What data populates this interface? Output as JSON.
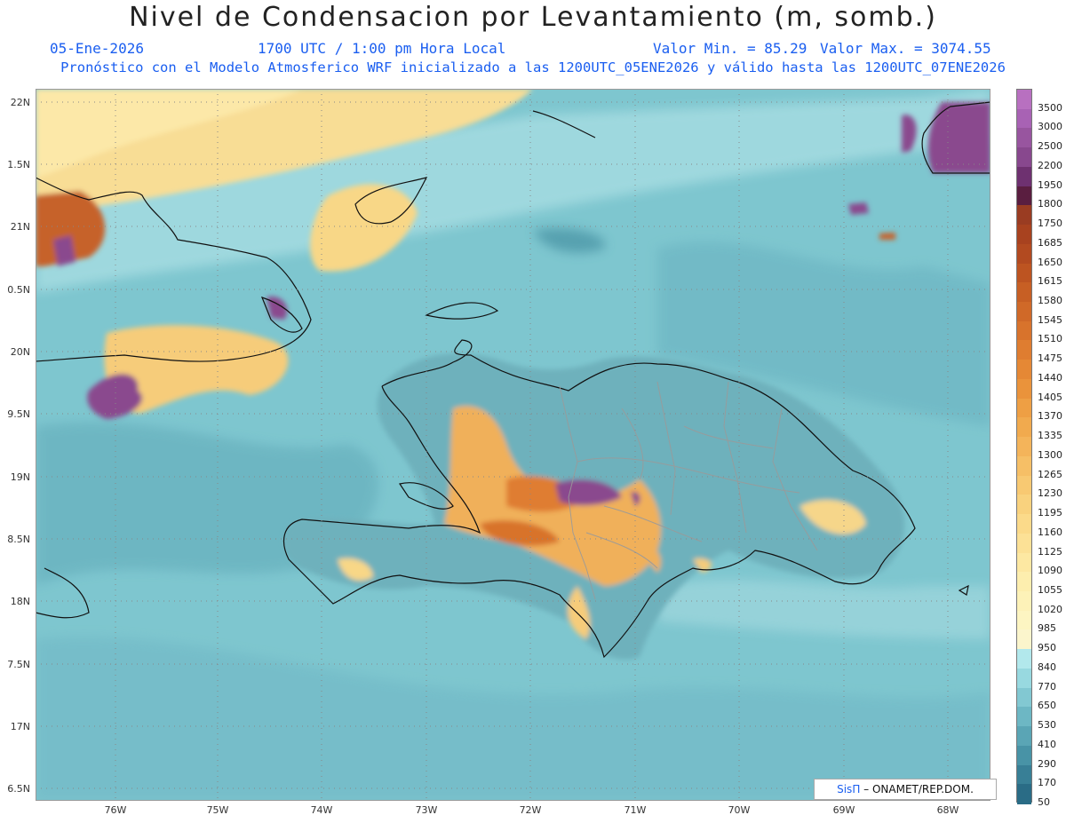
{
  "header": {
    "title": "Nivel de Condensacion por Levantamiento (m, somb.)",
    "date": "05-Ene-2026",
    "time": "1700 UTC / 1:00 pm Hora Local",
    "min_value": "Valor Min. = 85.29",
    "max_value": "Valor Max. = 3074.55",
    "description": "Pronóstico con el Modelo Atmosferico WRF inicializado a las 1200UTC_05ENE2026 y válido hasta las  1200UTC_07ENE2026"
  },
  "axes": {
    "latitudes": [
      "22N",
      "1.5N",
      "21N",
      "0.5N",
      "20N",
      "9.5N",
      "19N",
      "8.5N",
      "18N",
      "7.5N",
      "17N",
      "6.5N"
    ],
    "longitudes": [
      "76W",
      "75W",
      "74W",
      "73W",
      "72W",
      "71W",
      "70W",
      "69W",
      "68W"
    ]
  },
  "colorbar": {
    "labels": [
      "3500",
      "3000",
      "2500",
      "2200",
      "1950",
      "1800",
      "1750",
      "1685",
      "1650",
      "1615",
      "1580",
      "1545",
      "1510",
      "1475",
      "1440",
      "1405",
      "1370",
      "1335",
      "1300",
      "1265",
      "1230",
      "1195",
      "1160",
      "1125",
      "1090",
      "1055",
      "1020",
      "985",
      "950",
      "840",
      "770",
      "650",
      "530",
      "410",
      "290",
      "170",
      "50"
    ],
    "colors": [
      "#b870c0",
      "#a862b4",
      "#98559f",
      "#88488e",
      "#6e3170",
      "#5a1e40",
      "#9a3c22",
      "#a8421f",
      "#b24a20",
      "#bd5421",
      "#c75f24",
      "#d06928",
      "#d8732c",
      "#df7d30",
      "#e58835",
      "#ea933b",
      "#ee9f44",
      "#f1aa4e",
      "#f4b45a",
      "#f6bf66",
      "#f8c972",
      "#f9d27e",
      "#fbda8a",
      "#fce196",
      "#fde8a2",
      "#fdeeae",
      "#fdf2b8",
      "#fdf5c2",
      "#fbf5cc",
      "#b2e8ec",
      "#98d9e0",
      "#82c8d2",
      "#6db7c4",
      "#5aa5b5",
      "#4893a6",
      "#387f96",
      "#2a6c86"
    ]
  },
  "credit": {
    "brand": "SisΠ",
    "text": "– ONAMET/REP.DOM."
  }
}
